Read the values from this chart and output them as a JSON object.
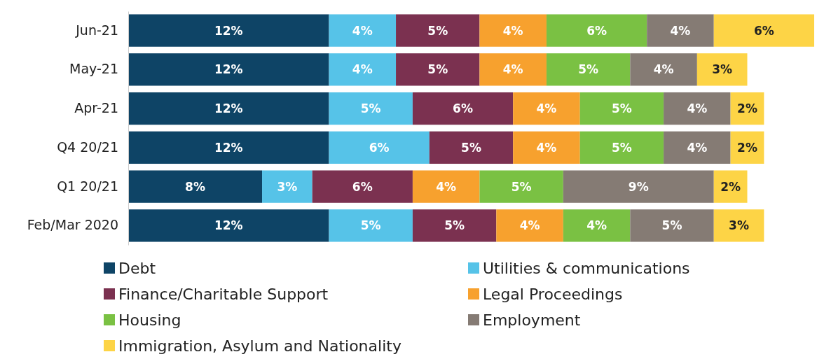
{
  "chart_data": {
    "type": "bar",
    "orientation": "horizontal",
    "stacked": true,
    "legend": "bottom",
    "categories": [
      "Jun-21",
      "May-21",
      "Apr-21",
      "Q4 20/21",
      "Q1 20/21",
      "Feb/Mar 2020"
    ],
    "series": [
      {
        "name": "Debt",
        "color": "#0e4466",
        "values": [
          12,
          12,
          12,
          12,
          8,
          12
        ],
        "value_labels": [
          "12%",
          "12%",
          "12%",
          "12%",
          "8%",
          "12%"
        ]
      },
      {
        "name": "Utilities & communications",
        "color": "#56c3e8",
        "values": [
          4,
          4,
          5,
          6,
          3,
          5
        ],
        "value_labels": [
          "4%",
          "4%",
          "5%",
          "6%",
          "3%",
          "5%"
        ]
      },
      {
        "name": "Finance/Charitable Support",
        "color": "#7b3150",
        "values": [
          5,
          5,
          6,
          5,
          6,
          5
        ],
        "value_labels": [
          "5%",
          "5%",
          "6%",
          "5%",
          "6%",
          "5%"
        ]
      },
      {
        "name": "Legal Proceedings",
        "color": "#f7a12e",
        "values": [
          4,
          4,
          4,
          4,
          4,
          4
        ],
        "value_labels": [
          "4%",
          "4%",
          "4%",
          "4%",
          "4%",
          "4%"
        ]
      },
      {
        "name": "Housing",
        "color": "#7ac143",
        "values": [
          6,
          5,
          5,
          5,
          5,
          4
        ],
        "value_labels": [
          "6%",
          "5%",
          "5%",
          "5%",
          "5%",
          "4%"
        ]
      },
      {
        "name": "Employment",
        "color": "#857b74",
        "values": [
          4,
          4,
          4,
          4,
          9,
          5
        ],
        "value_labels": [
          "4%",
          "4%",
          "4%",
          "4%",
          "9%",
          "5%"
        ]
      },
      {
        "name": "Immigration, Asylum and Nationality",
        "color": "#fdd446",
        "values": [
          6,
          3,
          2,
          2,
          2,
          3
        ],
        "value_labels": [
          "6%",
          "3%",
          "2%",
          "2%",
          "2%",
          "3%"
        ]
      }
    ]
  }
}
